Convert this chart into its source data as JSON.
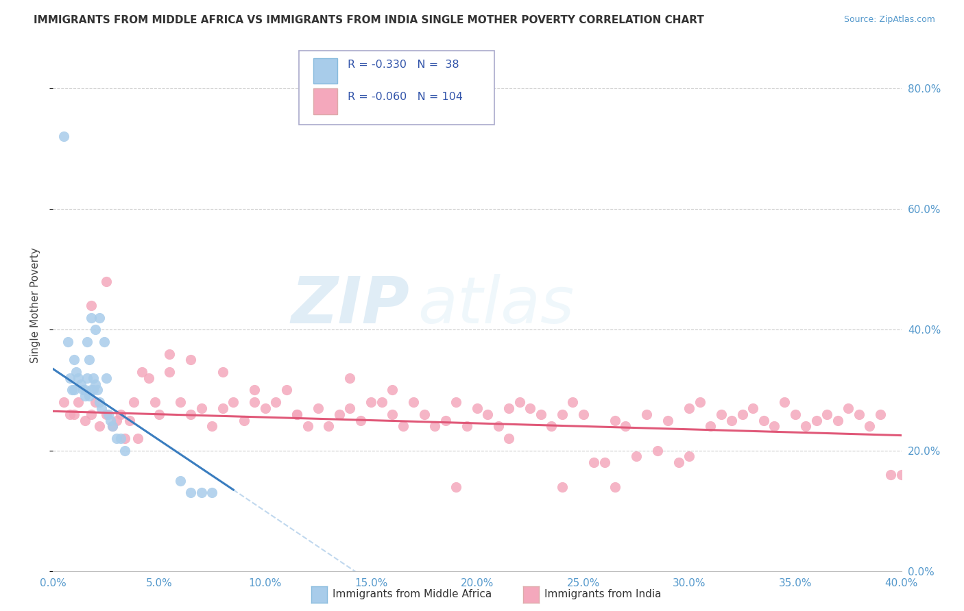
{
  "title": "IMMIGRANTS FROM MIDDLE AFRICA VS IMMIGRANTS FROM INDIA SINGLE MOTHER POVERTY CORRELATION CHART",
  "source": "Source: ZipAtlas.com",
  "ylabel": "Single Mother Poverty",
  "xlim": [
    0.0,
    0.4
  ],
  "ylim": [
    0.0,
    0.88
  ],
  "xticks": [
    0.0,
    0.05,
    0.1,
    0.15,
    0.2,
    0.25,
    0.3,
    0.35,
    0.4
  ],
  "yticks": [
    0.0,
    0.2,
    0.4,
    0.6,
    0.8
  ],
  "r_blue": -0.33,
  "n_blue": 38,
  "r_pink": -0.06,
  "n_pink": 104,
  "color_blue": "#a8ccea",
  "color_pink": "#f4a8bc",
  "color_blue_line": "#3a7dbf",
  "color_pink_line": "#e05878",
  "color_dashed": "#c0d8ee",
  "watermark_zip": "ZIP",
  "watermark_atlas": "atlas",
  "legend_label_blue": "Immigrants from Middle Africa",
  "legend_label_pink": "Immigrants from India",
  "blue_scatter_x": [
    0.005,
    0.007,
    0.008,
    0.009,
    0.01,
    0.01,
    0.011,
    0.012,
    0.013,
    0.014,
    0.015,
    0.015,
    0.016,
    0.016,
    0.017,
    0.017,
    0.018,
    0.018,
    0.019,
    0.019,
    0.02,
    0.02,
    0.021,
    0.022,
    0.022,
    0.023,
    0.024,
    0.025,
    0.026,
    0.027,
    0.028,
    0.03,
    0.032,
    0.034,
    0.06,
    0.065,
    0.07,
    0.075
  ],
  "blue_scatter_y": [
    0.72,
    0.38,
    0.32,
    0.3,
    0.35,
    0.3,
    0.33,
    0.32,
    0.31,
    0.3,
    0.3,
    0.29,
    0.38,
    0.32,
    0.35,
    0.29,
    0.42,
    0.3,
    0.32,
    0.3,
    0.4,
    0.31,
    0.3,
    0.42,
    0.28,
    0.27,
    0.38,
    0.32,
    0.26,
    0.25,
    0.24,
    0.22,
    0.22,
    0.2,
    0.15,
    0.13,
    0.13,
    0.13
  ],
  "pink_scatter_x": [
    0.005,
    0.008,
    0.01,
    0.012,
    0.015,
    0.018,
    0.02,
    0.022,
    0.025,
    0.028,
    0.03,
    0.032,
    0.034,
    0.036,
    0.038,
    0.04,
    0.042,
    0.045,
    0.048,
    0.05,
    0.055,
    0.06,
    0.065,
    0.07,
    0.075,
    0.08,
    0.085,
    0.09,
    0.095,
    0.1,
    0.105,
    0.11,
    0.115,
    0.12,
    0.125,
    0.13,
    0.135,
    0.14,
    0.145,
    0.15,
    0.155,
    0.16,
    0.165,
    0.17,
    0.175,
    0.18,
    0.185,
    0.19,
    0.195,
    0.2,
    0.205,
    0.21,
    0.215,
    0.22,
    0.225,
    0.23,
    0.235,
    0.24,
    0.245,
    0.25,
    0.255,
    0.26,
    0.265,
    0.27,
    0.275,
    0.28,
    0.285,
    0.29,
    0.295,
    0.3,
    0.305,
    0.31,
    0.315,
    0.32,
    0.325,
    0.33,
    0.335,
    0.34,
    0.345,
    0.35,
    0.355,
    0.36,
    0.365,
    0.37,
    0.375,
    0.38,
    0.385,
    0.39,
    0.395,
    0.4,
    0.018,
    0.025,
    0.055,
    0.065,
    0.08,
    0.095,
    0.115,
    0.14,
    0.16,
    0.19,
    0.215,
    0.24,
    0.265,
    0.3
  ],
  "pink_scatter_y": [
    0.28,
    0.26,
    0.26,
    0.28,
    0.25,
    0.26,
    0.28,
    0.24,
    0.26,
    0.24,
    0.25,
    0.26,
    0.22,
    0.25,
    0.28,
    0.22,
    0.33,
    0.32,
    0.28,
    0.26,
    0.33,
    0.28,
    0.26,
    0.27,
    0.24,
    0.27,
    0.28,
    0.25,
    0.28,
    0.27,
    0.28,
    0.3,
    0.26,
    0.24,
    0.27,
    0.24,
    0.26,
    0.27,
    0.25,
    0.28,
    0.28,
    0.26,
    0.24,
    0.28,
    0.26,
    0.24,
    0.25,
    0.28,
    0.24,
    0.27,
    0.26,
    0.24,
    0.27,
    0.28,
    0.27,
    0.26,
    0.24,
    0.26,
    0.28,
    0.26,
    0.18,
    0.18,
    0.25,
    0.24,
    0.19,
    0.26,
    0.2,
    0.25,
    0.18,
    0.27,
    0.28,
    0.24,
    0.26,
    0.25,
    0.26,
    0.27,
    0.25,
    0.24,
    0.28,
    0.26,
    0.24,
    0.25,
    0.26,
    0.25,
    0.27,
    0.26,
    0.24,
    0.26,
    0.16,
    0.16,
    0.44,
    0.48,
    0.36,
    0.35,
    0.33,
    0.3,
    0.26,
    0.32,
    0.3,
    0.14,
    0.22,
    0.14,
    0.14,
    0.19
  ],
  "blue_line_x0": 0.0,
  "blue_line_x1": 0.085,
  "blue_line_y0": 0.335,
  "blue_line_y1": 0.135,
  "pink_line_x0": 0.0,
  "pink_line_x1": 0.4,
  "pink_line_y0": 0.265,
  "pink_line_y1": 0.225
}
